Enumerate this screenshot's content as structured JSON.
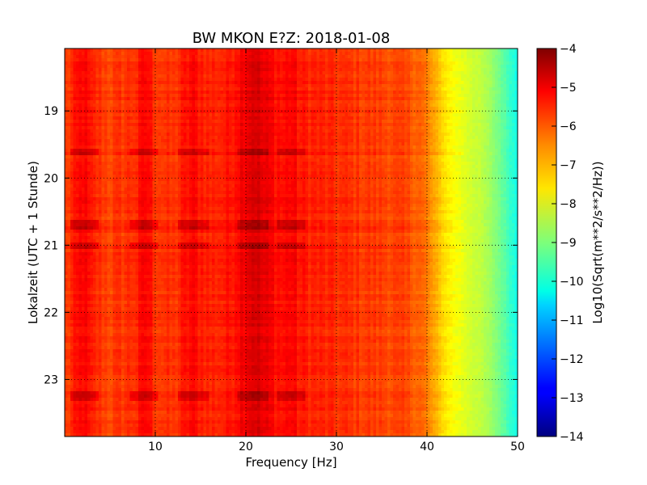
{
  "chart_data": {
    "type": "heatmap",
    "title": "BW MKON E?Z: 2018-01-08",
    "xlabel": "Frequency [Hz]",
    "ylabel": "Lokalzeit (UTC + 1 Stunde)",
    "xlim": [
      0,
      50
    ],
    "ylim": [
      18.07,
      23.85
    ],
    "y_inverted": true,
    "x_ticks": [
      10,
      20,
      30,
      40,
      50
    ],
    "x_tick_labels": [
      "10",
      "20",
      "30",
      "40",
      "50"
    ],
    "y_ticks": [
      19,
      20,
      21,
      22,
      23
    ],
    "y_tick_labels": [
      "19",
      "20",
      "21",
      "22",
      "23"
    ],
    "grid": true,
    "colormap": "jet",
    "colorbar": {
      "label": "Log10(Sqrt(m**2/s**2/Hz))",
      "range": [
        -14,
        -4
      ],
      "ticks": [
        -4,
        -5,
        -6,
        -7,
        -8,
        -9,
        -10,
        -11,
        -12,
        -13,
        -14
      ],
      "tick_labels": [
        "−4",
        "−5",
        "−6",
        "−7",
        "−8",
        "−9",
        "−10",
        "−11",
        "−12",
        "−13",
        "−14"
      ]
    },
    "baseline_profile": {
      "frequency_hz": [
        0,
        1,
        2,
        3,
        5,
        8,
        9,
        10,
        12,
        14,
        16,
        18,
        20,
        21,
        22,
        24,
        25,
        26,
        28,
        30,
        33,
        36,
        39,
        40,
        41,
        42,
        43,
        44,
        45,
        46,
        47,
        48,
        49,
        50
      ],
      "log10_amplitude": [
        -5.9,
        -5.6,
        -5.2,
        -5.6,
        -5.9,
        -5.6,
        -5.2,
        -5.7,
        -5.8,
        -5.3,
        -5.6,
        -5.5,
        -5.0,
        -4.8,
        -5.1,
        -5.4,
        -5.2,
        -5.5,
        -5.6,
        -5.7,
        -5.8,
        -5.9,
        -6.1,
        -6.5,
        -7.0,
        -7.5,
        -7.8,
        -8.0,
        -8.2,
        -8.4,
        -8.7,
        -9.1,
        -9.6,
        -10.1
      ]
    },
    "strong_bands_hz": [
      2.3,
      8.8,
      14.2,
      20.8,
      25.0
    ]
  }
}
